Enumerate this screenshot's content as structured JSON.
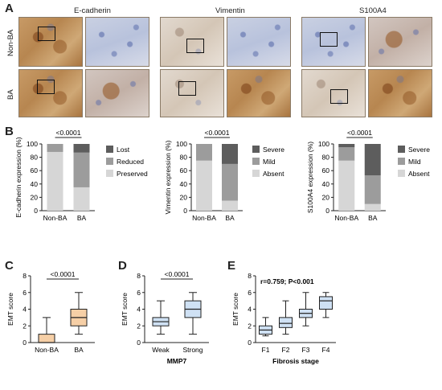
{
  "panel_labels": [
    "A",
    "B",
    "C",
    "D",
    "E"
  ],
  "panel_a": {
    "columns": [
      "E-cadherin",
      "Vimentin",
      "S100A4"
    ],
    "rows": [
      "Non-BA",
      "BA"
    ]
  },
  "colors": {
    "stack_dark": "#5d5d5d",
    "stack_mid": "#9c9c9c",
    "stack_light": "#d6d6d6",
    "box_orange": "#f6cfa6",
    "box_blue": "#cfe1f4",
    "stroke": "#222222"
  },
  "chart_data": [
    {
      "id": "B1",
      "type": "bar",
      "stacked": true,
      "categories": [
        "Non-BA",
        "BA"
      ],
      "series": [
        {
          "name": "Preserved",
          "values": [
            88,
            35
          ]
        },
        {
          "name": "Reduced",
          "values": [
            12,
            52
          ]
        },
        {
          "name": "Lost",
          "values": [
            0,
            13
          ]
        }
      ],
      "ylabel": "E-cadherin expression (%)",
      "ylim": [
        0,
        100
      ],
      "yticks": [
        "0",
        "20",
        "40",
        "60",
        "80",
        "100"
      ],
      "significance": "<0.0001",
      "legend_position": "right"
    },
    {
      "id": "B2",
      "type": "bar",
      "stacked": true,
      "categories": [
        "Non-BA",
        "BA"
      ],
      "series": [
        {
          "name": "Absent",
          "values": [
            75,
            15
          ]
        },
        {
          "name": "Mild",
          "values": [
            25,
            55
          ]
        },
        {
          "name": "Severe",
          "values": [
            0,
            30
          ]
        }
      ],
      "ylabel": "Vimentin expression (%)",
      "ylim": [
        0,
        100
      ],
      "yticks": [
        "0",
        "20",
        "40",
        "60",
        "80",
        "100"
      ],
      "significance": "<0.0001",
      "legend_position": "right"
    },
    {
      "id": "B3",
      "type": "bar",
      "stacked": true,
      "categories": [
        "Non-BA",
        "BA"
      ],
      "series": [
        {
          "name": "Absent",
          "values": [
            75,
            10
          ]
        },
        {
          "name": "Mild",
          "values": [
            20,
            43
          ]
        },
        {
          "name": "Severe",
          "values": [
            5,
            47
          ]
        }
      ],
      "ylabel": "S100A4 expression (%)",
      "ylim": [
        0,
        100
      ],
      "yticks": [
        "0",
        "20",
        "40",
        "60",
        "80",
        "100"
      ],
      "significance": "<0.0001",
      "legend_position": "right"
    },
    {
      "id": "C",
      "type": "box",
      "categories": [
        "Non-BA",
        "BA"
      ],
      "boxes": [
        {
          "min": 0,
          "q1": 0,
          "median": 0,
          "q3": 1,
          "max": 3
        },
        {
          "min": 1,
          "q1": 2,
          "median": 3,
          "q3": 4,
          "max": 6
        }
      ],
      "ylabel": "EMT score",
      "ylim": [
        0,
        8
      ],
      "yticks": [
        "0",
        "2",
        "4",
        "6",
        "8"
      ],
      "significance": "<0.0001"
    },
    {
      "id": "D",
      "type": "box",
      "categories": [
        "Weak",
        "Strong"
      ],
      "boxes": [
        {
          "min": 1,
          "q1": 2,
          "median": 2.5,
          "q3": 3,
          "max": 5
        },
        {
          "min": 1,
          "q1": 3,
          "median": 4,
          "q3": 5,
          "max": 6
        }
      ],
      "ylabel": "EMT score",
      "xlabel": "MMP7",
      "ylim": [
        0,
        8
      ],
      "yticks": [
        "0",
        "2",
        "4",
        "6",
        "8"
      ],
      "significance": "<0.0001"
    },
    {
      "id": "E",
      "type": "box",
      "categories": [
        "F1",
        "F2",
        "F3",
        "F4"
      ],
      "boxes": [
        {
          "min": 0.8,
          "q1": 1,
          "median": 1.5,
          "q3": 2,
          "max": 3
        },
        {
          "min": 1,
          "q1": 1.8,
          "median": 2.3,
          "q3": 3,
          "max": 5
        },
        {
          "min": 2,
          "q1": 3,
          "median": 3.5,
          "q3": 4,
          "max": 6
        },
        {
          "min": 3,
          "q1": 4,
          "median": 5,
          "q3": 5.5,
          "max": 6
        }
      ],
      "ylabel": "EMT score",
      "xlabel": "Fibrosis stage",
      "ylim": [
        0,
        8
      ],
      "yticks": [
        "0",
        "2",
        "4",
        "6",
        "8"
      ],
      "annotation": "r=0.759; P<0.001"
    }
  ]
}
